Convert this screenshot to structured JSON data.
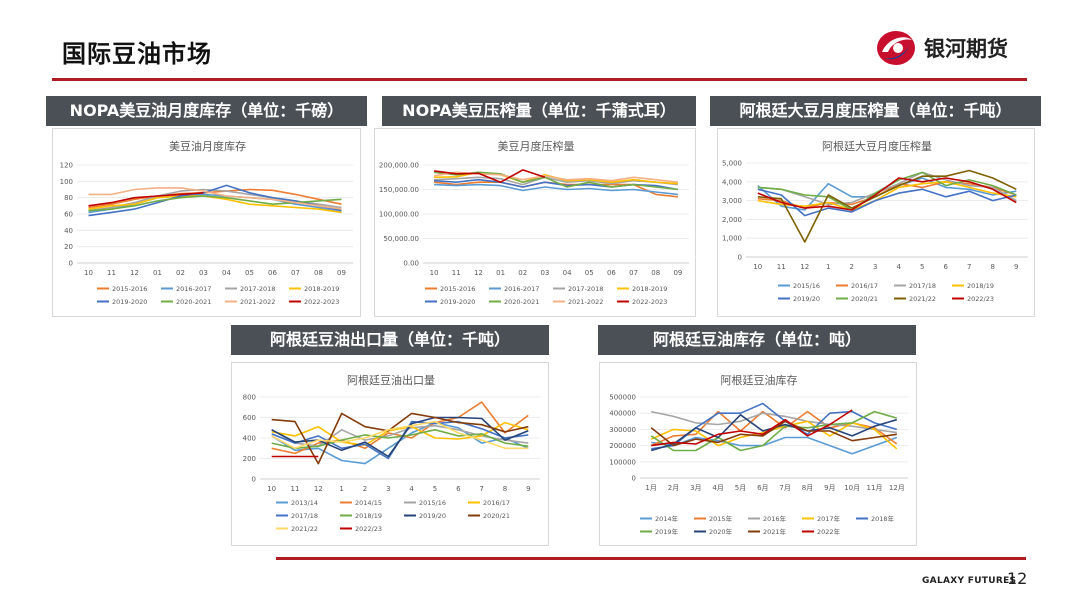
{
  "header": {
    "title": "国际豆油市场",
    "logo_text": "银河期货"
  },
  "footer": {
    "brand": "GALAXY FUTURES",
    "page_number": "12"
  },
  "colors": {
    "accent": "#b01c24",
    "tab_bg": "#4a5056"
  },
  "chart_data": [
    {
      "id": "nopa-stocks",
      "panel_title": "NOPA美豆油月度库存（单位：千磅）",
      "title": "美豆油月度库存",
      "type": "line",
      "categories": [
        "10",
        "11",
        "12",
        "01",
        "02",
        "03",
        "04",
        "05",
        "06",
        "07",
        "08",
        "09"
      ],
      "y_ticks": [
        "0",
        "20",
        "40",
        "60",
        "80",
        "100",
        "120"
      ],
      "ylim": [
        0,
        120
      ],
      "series": [
        {
          "name": "2015-2016",
          "color": "#ed7d31",
          "values": [
            68,
            72,
            78,
            82,
            85,
            86,
            88,
            90,
            89,
            84,
            78,
            72
          ]
        },
        {
          "name": "2016-2017",
          "color": "#5b9bd5",
          "values": [
            62,
            66,
            72,
            80,
            82,
            84,
            82,
            80,
            78,
            72,
            68,
            62
          ]
        },
        {
          "name": "2017-2018",
          "color": "#a5a5a5",
          "values": [
            64,
            68,
            74,
            82,
            88,
            90,
            88,
            84,
            80,
            76,
            72,
            68
          ]
        },
        {
          "name": "2018-2019",
          "color": "#ffc000",
          "values": [
            66,
            70,
            72,
            80,
            82,
            82,
            78,
            72,
            70,
            68,
            66,
            62
          ]
        },
        {
          "name": "2019-2020",
          "color": "#4472c4",
          "values": [
            58,
            62,
            66,
            74,
            82,
            86,
            95,
            86,
            80,
            76,
            70,
            64
          ]
        },
        {
          "name": "2020-2021",
          "color": "#70ad47",
          "values": [
            64,
            66,
            70,
            76,
            80,
            82,
            80,
            76,
            72,
            74,
            76,
            78
          ]
        },
        {
          "name": "2021-2022",
          "color": "#f4b183",
          "values": [
            84,
            84,
            90,
            92,
            92,
            88,
            82,
            80,
            78,
            74,
            70,
            66
          ]
        },
        {
          "name": "2022-2023",
          "color": "#c00000",
          "values": [
            70,
            74,
            80,
            82,
            84,
            86,
            null,
            null,
            null,
            null,
            null,
            null
          ]
        }
      ]
    },
    {
      "id": "nopa-crush",
      "panel_title": "NOPA美豆压榨量（单位：千蒲式耳）",
      "title": "美豆月度压榨量",
      "type": "line",
      "categories": [
        "10",
        "11",
        "12",
        "01",
        "02",
        "03",
        "04",
        "05",
        "06",
        "07",
        "08",
        "09"
      ],
      "y_ticks": [
        "0.00",
        "50,000.00",
        "100,000.00",
        "150,000.00",
        "200,000.00"
      ],
      "ylim": [
        0,
        200000
      ],
      "series": [
        {
          "name": "2015-2016",
          "color": "#ed7d31",
          "values": [
            165000,
            160000,
            165000,
            165000,
            155000,
            165000,
            160000,
            160000,
            160000,
            160000,
            140000,
            135000
          ]
        },
        {
          "name": "2016-2017",
          "color": "#5b9bd5",
          "values": [
            160000,
            158000,
            160000,
            158000,
            148000,
            155000,
            150000,
            152000,
            148000,
            150000,
            145000,
            140000
          ]
        },
        {
          "name": "2017-2018",
          "color": "#a5a5a5",
          "values": [
            170000,
            172000,
            175000,
            172000,
            160000,
            175000,
            165000,
            168000,
            162000,
            168000,
            165000,
            160000
          ]
        },
        {
          "name": "2018-2019",
          "color": "#ffc000",
          "values": [
            175000,
            176000,
            185000,
            180000,
            165000,
            180000,
            168000,
            170000,
            165000,
            170000,
            165000,
            162000
          ]
        },
        {
          "name": "2019-2020",
          "color": "#4472c4",
          "values": [
            168000,
            165000,
            170000,
            165000,
            155000,
            165000,
            158000,
            160000,
            155000,
            160000,
            158000,
            150000
          ]
        },
        {
          "name": "2020-2021",
          "color": "#70ad47",
          "values": [
            185000,
            180000,
            185000,
            182000,
            165000,
            175000,
            155000,
            165000,
            155000,
            160000,
            155000,
            150000
          ]
        },
        {
          "name": "2021-2022",
          "color": "#f4b183",
          "values": [
            178000,
            185000,
            182000,
            180000,
            170000,
            178000,
            170000,
            172000,
            168000,
            175000,
            170000,
            165000
          ]
        },
        {
          "name": "2022-2023",
          "color": "#c00000",
          "values": [
            188000,
            182000,
            183000,
            165000,
            190000,
            175000,
            null,
            null,
            null,
            null,
            null,
            null
          ]
        }
      ]
    },
    {
      "id": "arg-crush",
      "panel_title": "阿根廷大豆月度压榨量（单位：千吨）",
      "title": "阿根廷大豆月度压榨量",
      "type": "line",
      "categories": [
        "10",
        "11",
        "12",
        "1",
        "2",
        "3",
        "4",
        "5",
        "6",
        "7",
        "8",
        "9"
      ],
      "y_ticks": [
        "0",
        "1,000",
        "2,000",
        "3,000",
        "4,000",
        "5,000"
      ],
      "ylim": [
        0,
        5000
      ],
      "series": [
        {
          "name": "2015/16",
          "color": "#5b9bd5",
          "values": [
            3800,
            2700,
            2500,
            3900,
            3200,
            3200,
            3800,
            4200,
            3700,
            3600,
            3300,
            3500
          ]
        },
        {
          "name": "2016/17",
          "color": "#ed7d31",
          "values": [
            3100,
            3000,
            2600,
            2900,
            2800,
            3200,
            3900,
            3700,
            4000,
            3900,
            3700,
            3300
          ]
        },
        {
          "name": "2017/18",
          "color": "#a5a5a5",
          "values": [
            3700,
            3600,
            3200,
            2800,
            2900,
            3400,
            3900,
            4500,
            4100,
            3800,
            3700,
            3000
          ]
        },
        {
          "name": "2018/19",
          "color": "#ffc000",
          "values": [
            3000,
            2800,
            2700,
            2900,
            2500,
            3000,
            3700,
            3900,
            4000,
            3700,
            3400,
            3200
          ]
        },
        {
          "name": "2019/20",
          "color": "#4472c4",
          "values": [
            3600,
            3300,
            2200,
            2600,
            2400,
            3000,
            3400,
            3600,
            3200,
            3500,
            3000,
            3300
          ]
        },
        {
          "name": "2020/21",
          "color": "#70ad47",
          "values": [
            3700,
            3600,
            3300,
            3200,
            2500,
            3400,
            4100,
            4500,
            3800,
            4100,
            3800,
            3300
          ]
        },
        {
          "name": "2021/22",
          "color": "#7f6000",
          "values": [
            3200,
            3100,
            800,
            3300,
            2600,
            3200,
            3800,
            4300,
            4300,
            4600,
            4200,
            3600
          ]
        },
        {
          "name": "2022/23",
          "color": "#c00000",
          "values": [
            3400,
            2900,
            2600,
            2700,
            2500,
            3300,
            4200,
            4000,
            4200,
            4000,
            3600,
            2900
          ]
        }
      ]
    },
    {
      "id": "arg-exports",
      "panel_title": "阿根廷豆油出口量（单位：千吨）",
      "title": "阿根廷豆油出口量",
      "type": "line",
      "categories": [
        "10",
        "11",
        "12",
        "1",
        "2",
        "3",
        "4",
        "5",
        "6",
        "7",
        "8",
        "9"
      ],
      "y_ticks": [
        "0",
        "200",
        "400",
        "600",
        "800"
      ],
      "ylim": [
        0,
        800
      ],
      "series": [
        {
          "name": "2013/14",
          "color": "#5b9bd5",
          "values": [
            420,
            280,
            300,
            180,
            150,
            300,
            450,
            550,
            500,
            350,
            400,
            300
          ]
        },
        {
          "name": "2014/15",
          "color": "#ed7d31",
          "values": [
            300,
            250,
            350,
            380,
            300,
            450,
            400,
            550,
            600,
            750,
            450,
            620
          ]
        },
        {
          "name": "2015/16",
          "color": "#a5a5a5",
          "values": [
            480,
            350,
            320,
            480,
            380,
            420,
            500,
            520,
            480,
            420,
            380,
            350
          ]
        },
        {
          "name": "2016/17",
          "color": "#ffc000",
          "values": [
            460,
            420,
            510,
            360,
            330,
            470,
            510,
            400,
            390,
            420,
            550,
            480
          ]
        },
        {
          "name": "2017/18",
          "color": "#4472c4",
          "values": [
            440,
            350,
            420,
            300,
            340,
            200,
            560,
            540,
            560,
            490,
            400,
            430
          ]
        },
        {
          "name": "2018/19",
          "color": "#70ad47",
          "values": [
            350,
            300,
            320,
            380,
            430,
            400,
            430,
            480,
            420,
            440,
            350,
            320
          ]
        },
        {
          "name": "2019/20",
          "color": "#264478",
          "values": [
            480,
            360,
            380,
            280,
            360,
            220,
            540,
            600,
            600,
            590,
            380,
            470
          ]
        },
        {
          "name": "2020/21",
          "color": "#843c0c",
          "values": [
            580,
            560,
            150,
            640,
            510,
            470,
            640,
            600,
            550,
            530,
            460,
            510
          ]
        },
        {
          "name": "2021/22",
          "color": "#ffd966",
          "values": [
            420,
            300,
            380,
            360,
            400,
            480,
            520,
            560,
            450,
            380,
            300,
            300
          ]
        },
        {
          "name": "2022/23",
          "color": "#c00000",
          "values": [
            220,
            220,
            220,
            null,
            null,
            null,
            null,
            null,
            null,
            null,
            null,
            null
          ]
        }
      ]
    },
    {
      "id": "arg-stocks",
      "panel_title": "阿根廷豆油库存（单位：吨）",
      "title": "阿根廷豆油库存",
      "type": "line",
      "categories": [
        "1月",
        "2月",
        "3月",
        "4月",
        "5月",
        "6月",
        "7月",
        "8月",
        "9月",
        "10月",
        "11月",
        "12月"
      ],
      "y_ticks": [
        "0",
        "100000",
        "200000",
        "300000",
        "400000",
        "500000"
      ],
      "ylim": [
        0,
        500000
      ],
      "series": [
        {
          "name": "2014年",
          "color": "#5b9bd5",
          "values": [
            220000,
            200000,
            250000,
            230000,
            200000,
            200000,
            250000,
            250000,
            200000,
            150000,
            200000,
            250000
          ]
        },
        {
          "name": "2015年",
          "color": "#ed7d31",
          "values": [
            200000,
            260000,
            270000,
            410000,
            290000,
            410000,
            310000,
            410000,
            310000,
            340000,
            310000,
            210000
          ]
        },
        {
          "name": "2016年",
          "color": "#a5a5a5",
          "values": [
            410000,
            380000,
            340000,
            330000,
            350000,
            400000,
            380000,
            350000,
            330000,
            320000,
            300000,
            280000
          ]
        },
        {
          "name": "2017年",
          "color": "#ffc000",
          "values": [
            240000,
            300000,
            290000,
            200000,
            250000,
            280000,
            320000,
            350000,
            260000,
            340000,
            300000,
            180000
          ]
        },
        {
          "name": "2018年",
          "color": "#4472c4",
          "values": [
            180000,
            200000,
            310000,
            400000,
            400000,
            460000,
            350000,
            270000,
            400000,
            410000,
            340000,
            300000
          ]
        },
        {
          "name": "2019年",
          "color": "#70ad47",
          "values": [
            260000,
            170000,
            170000,
            250000,
            170000,
            200000,
            320000,
            310000,
            330000,
            340000,
            410000,
            370000
          ]
        },
        {
          "name": "2020年",
          "color": "#264478",
          "values": [
            170000,
            210000,
            310000,
            250000,
            390000,
            290000,
            330000,
            290000,
            310000,
            260000,
            320000,
            360000
          ]
        },
        {
          "name": "2021年",
          "color": "#843c0c",
          "values": [
            310000,
            200000,
            240000,
            220000,
            270000,
            260000,
            350000,
            290000,
            290000,
            230000,
            250000,
            270000
          ]
        },
        {
          "name": "2022年",
          "color": "#c00000",
          "values": [
            200000,
            220000,
            210000,
            270000,
            290000,
            270000,
            360000,
            260000,
            330000,
            420000,
            null,
            null
          ]
        }
      ]
    }
  ]
}
